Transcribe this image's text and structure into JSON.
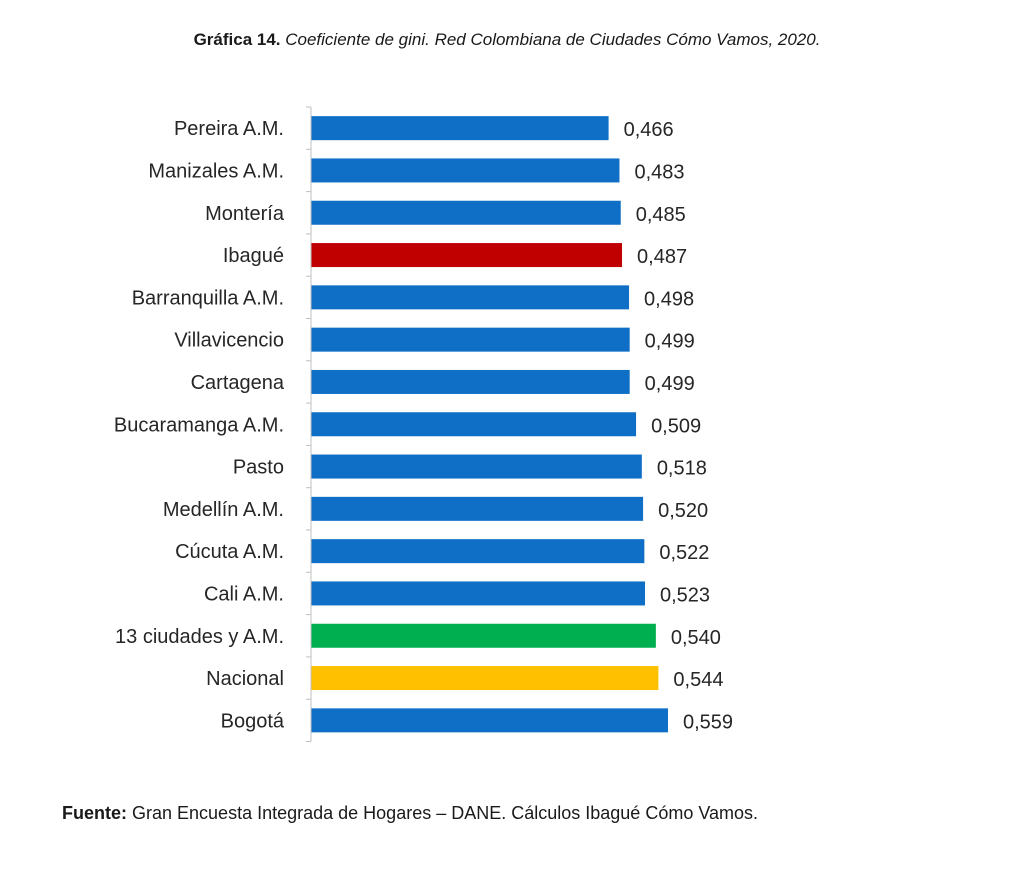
{
  "title": {
    "lead": "Gráfica 14.",
    "rest": "Coeficiente de gini. Red Colombiana de Ciudades Cómo Vamos, 2020."
  },
  "source": {
    "lead": "Fuente:",
    "text": "Gran Encuesta Integrada de Hogares – DANE. Cálculos Ibagué Cómo Vamos."
  },
  "colors": {
    "default": "#0f6fc6",
    "ibague": "#c00000",
    "ciudades13": "#00b050",
    "nacional": "#ffc000"
  },
  "chart_data": {
    "type": "bar",
    "orientation": "horizontal",
    "categories": [
      "Pereira A.M.",
      "Manizales A.M.",
      "Montería",
      "Ibagué",
      "Barranquilla A.M.",
      "Villavicencio",
      "Cartagena",
      "Bucaramanga A.M.",
      "Pasto",
      "Medellín A.M.",
      "Cúcuta A.M.",
      "Cali A.M.",
      "13 ciudades y A.M.",
      "Nacional",
      "Bogotá"
    ],
    "values": [
      0.466,
      0.483,
      0.485,
      0.487,
      0.498,
      0.499,
      0.499,
      0.509,
      0.518,
      0.52,
      0.522,
      0.523,
      0.54,
      0.544,
      0.559
    ],
    "value_labels": [
      "0,466",
      "0,483",
      "0,485",
      "0,487",
      "0,498",
      "0,499",
      "0,499",
      "0,509",
      "0,518",
      "0,520",
      "0,522",
      "0,523",
      "0,540",
      "0,544",
      "0,559"
    ],
    "bar_colors": [
      "default",
      "default",
      "default",
      "ibague",
      "default",
      "default",
      "default",
      "default",
      "default",
      "default",
      "default",
      "default",
      "ciudades13",
      "nacional",
      "default"
    ],
    "xlim": [
      0,
      0.6
    ],
    "xaxis_visible": false,
    "grid": false,
    "legend": "none"
  }
}
